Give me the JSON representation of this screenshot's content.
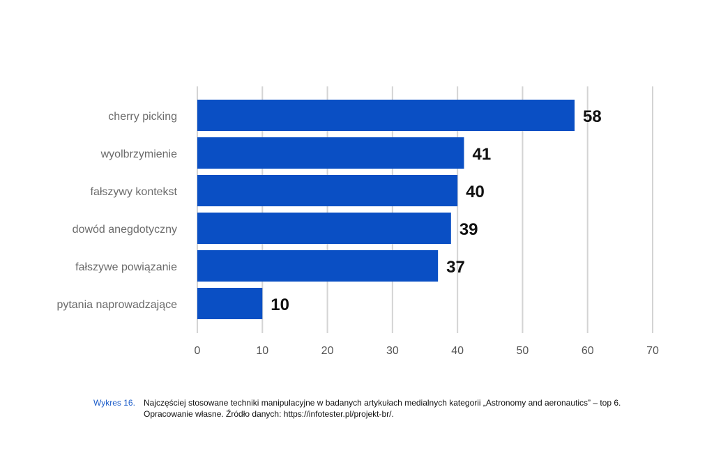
{
  "chart_data": {
    "type": "bar",
    "orientation": "horizontal",
    "categories": [
      "cherry picking",
      "wyolbrzymienie",
      "fałszywy kontekst",
      "dowód anegdotyczny",
      "fałszywe powiązanie",
      "pytania naprowadzające"
    ],
    "values": [
      58,
      41,
      40,
      39,
      37,
      10
    ],
    "data_labels": [
      "58",
      "41",
      "40",
      "39",
      "37",
      "10"
    ],
    "xlim": [
      0,
      70
    ],
    "x_ticks": [
      0,
      10,
      20,
      30,
      40,
      50,
      60,
      70
    ],
    "x_tick_labels": [
      "0",
      "10",
      "20",
      "30",
      "40",
      "50",
      "60",
      "70"
    ],
    "grid": true,
    "bar_color": "#0a4fc4",
    "legend": "none"
  },
  "caption": {
    "tag": "Wykres 16.",
    "line1": "Najczęściej stosowane techniki manipulacyjne w badanych artykułach medialnych kategorii „Astronomy and aeronautics” – top 6.",
    "line2": "Opracowanie własne. Źródło danych: https://infotester.pl/projekt-br/."
  }
}
